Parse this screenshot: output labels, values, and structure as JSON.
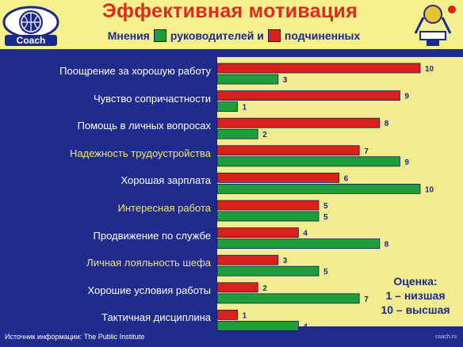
{
  "header": {
    "title": "Эффективная мотивация",
    "legend_prefix": "Мнения",
    "legend_green": "руководителей и",
    "legend_red": "подчиненных",
    "logo_text": "Coach",
    "colors": {
      "header_bg": "#f5ef8d",
      "title": "#e02a1c",
      "legend_text": "#1b2a8a"
    }
  },
  "scale_note": {
    "heading": "Оценка:",
    "low": "1 – низшая",
    "high": "10 – высшая"
  },
  "footer": {
    "source": "Источник информации: The Public Institute",
    "site": "coach.ru"
  },
  "chart_data": {
    "type": "bar",
    "orientation": "horizontal",
    "categories": [
      "Поощрение за хорошую работу",
      "Чувство сопричастности",
      "Помощь в личных вопросах",
      "Надежность трудоустройства",
      "Хорошая зарплата",
      "Интересная работа",
      "Продвижение по службе",
      "Личная лояльность шефа",
      "Хорошие условия работы",
      "Тактичная дисциплина"
    ],
    "label_colors": [
      "#ffffff",
      "#ffffff",
      "#ffffff",
      "#f4e66a",
      "#ffffff",
      "#f4e66a",
      "#ffffff",
      "#f4e66a",
      "#ffffff",
      "#ffffff"
    ],
    "series": [
      {
        "values": [
          10,
          9,
          8,
          7,
          6,
          5,
          4,
          3,
          2,
          1
        ],
        "color": "#d9201a"
      },
      {
        "values": [
          3,
          1,
          2,
          9,
          10,
          5,
          8,
          5,
          7,
          4
        ],
        "color": "#1e9e3a"
      }
    ],
    "xlim": [
      0,
      10
    ],
    "grid": false,
    "legend": "top"
  }
}
